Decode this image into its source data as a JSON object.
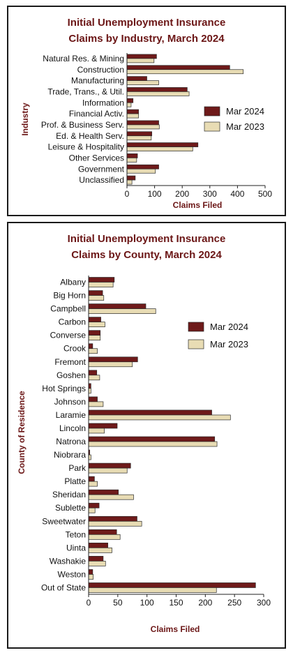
{
  "colors": {
    "mar_2024": "#6e1a1a",
    "mar_2023": "#e8dcb4",
    "title": "#6b1616",
    "frame": "#1a1a1a"
  },
  "chart_data": [
    {
      "type": "bar",
      "orientation": "horizontal",
      "title_lines": [
        "Initial Unemployment Insurance",
        "Claims by Industry, March 2024"
      ],
      "xlabel": "Claims Filed",
      "ylabel": "Industry",
      "xlim": [
        0,
        500
      ],
      "xticks": [
        0,
        100,
        200,
        300,
        400,
        500
      ],
      "grid": false,
      "legend_position": "right",
      "categories": [
        "Natural Res. & Mining",
        "Construction",
        "Manufacturing",
        "Trade, Trans., & Util.",
        "Information",
        "Financial Activ.",
        "Prof. & Business Serv.",
        "Ed. & Health Serv.",
        "Leisure & Hospitality",
        "Other Services",
        "Government",
        "Unclassified"
      ],
      "series": [
        {
          "name": "Mar 2024",
          "values": [
            107,
            372,
            72,
            218,
            22,
            42,
            115,
            90,
            257,
            38,
            115,
            30
          ]
        },
        {
          "name": "Mar 2023",
          "values": [
            98,
            421,
            115,
            225,
            15,
            42,
            117,
            88,
            238,
            35,
            103,
            18
          ]
        }
      ]
    },
    {
      "type": "bar",
      "orientation": "horizontal",
      "title_lines": [
        "Initial Unemployment Insurance",
        "Claims by County, March 2024"
      ],
      "xlabel": "Claims Filed",
      "ylabel": "County of Residence",
      "xlim": [
        0,
        300
      ],
      "xticks": [
        0,
        50,
        100,
        150,
        200,
        250,
        300
      ],
      "grid": false,
      "legend_position": "right",
      "categories": [
        "Albany",
        "Big Horn",
        "Campbell",
        "Carbon",
        "Converse",
        "Crook",
        "Fremont",
        "Goshen",
        "Hot Springs",
        "Johnson",
        "Laramie",
        "Lincoln",
        "Natrona",
        "Niobrara",
        "Park",
        "Platte",
        "Sheridan",
        "Sublette",
        "Sweetwater",
        "Teton",
        "Uinta",
        "Washakie",
        "Weston",
        "Out of State"
      ],
      "series": [
        {
          "name": "Mar 2024",
          "values": [
            44,
            24,
            98,
            21,
            20,
            7,
            84,
            14,
            4,
            15,
            211,
            49,
            216,
            2,
            72,
            10,
            51,
            18,
            83,
            48,
            33,
            25,
            7,
            286
          ]
        },
        {
          "name": "Mar 2023",
          "values": [
            42,
            26,
            115,
            28,
            20,
            15,
            75,
            19,
            4,
            25,
            243,
            27,
            220,
            4,
            66,
            15,
            77,
            11,
            91,
            54,
            40,
            29,
            8,
            219
          ]
        }
      ]
    }
  ]
}
